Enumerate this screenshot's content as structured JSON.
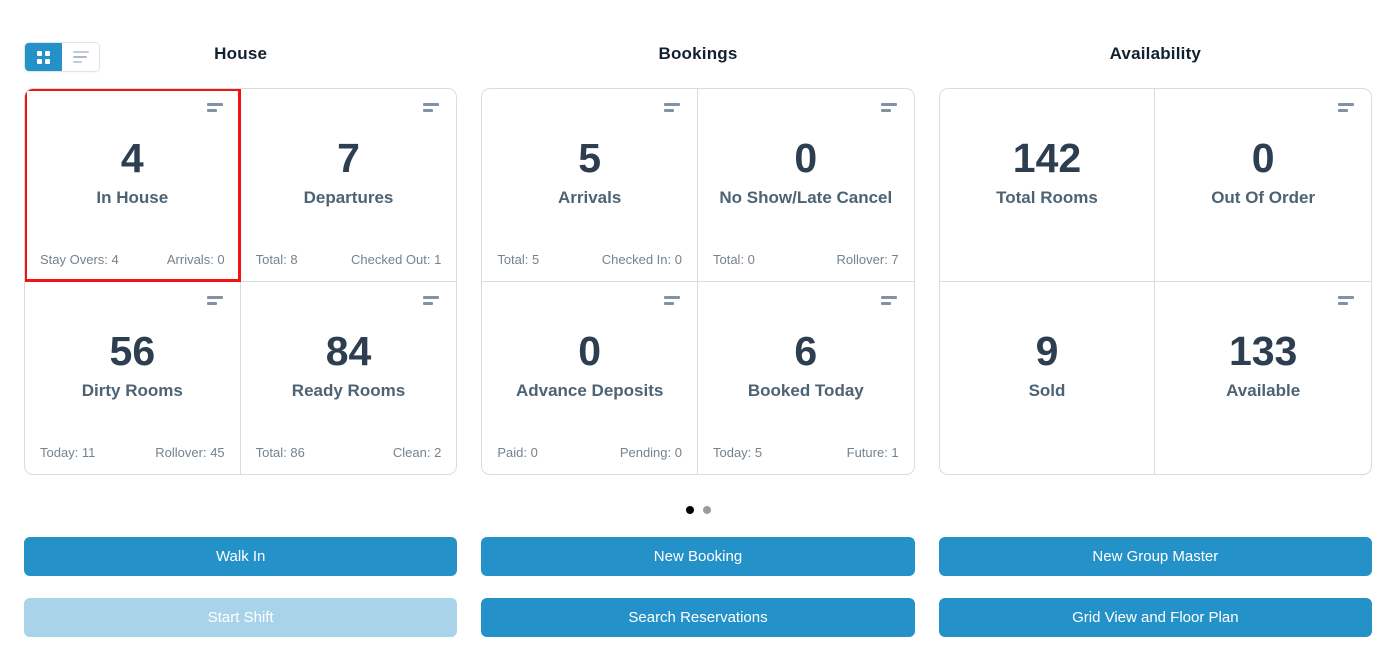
{
  "colors": {
    "accent_blue": "#2492c8",
    "disabled_blue": "#a9d3e9",
    "highlight_red": "#f11212",
    "card_border": "#d8dde2",
    "number_text": "#2d3e50",
    "label_text": "#4d6374",
    "stat_text": "#75828f"
  },
  "view_toggle": {
    "grid_view": "grid view (active)",
    "list_view": "list view"
  },
  "pagination": {
    "dot_count": 2,
    "active_index": 0
  },
  "sections": [
    {
      "title": "House",
      "cards": [
        {
          "value": "4",
          "label": "In House",
          "stat_left": "Stay Overs: 4",
          "stat_right": "Arrivals: 0",
          "highlighted": true,
          "has_menu_icon": true
        },
        {
          "value": "7",
          "label": "Departures",
          "stat_left": "Total: 8",
          "stat_right": "Checked Out: 1",
          "highlighted": false,
          "has_menu_icon": true
        },
        {
          "value": "56",
          "label": "Dirty Rooms",
          "stat_left": "Today: 11",
          "stat_right": "Rollover: 45",
          "highlighted": false,
          "has_menu_icon": true
        },
        {
          "value": "84",
          "label": "Ready Rooms",
          "stat_left": "Total: 86",
          "stat_right": "Clean: 2",
          "highlighted": false,
          "has_menu_icon": true
        }
      ],
      "primary_button": {
        "label": "Walk In",
        "disabled": false
      },
      "secondary_button": {
        "label": "Start Shift",
        "disabled": true
      }
    },
    {
      "title": "Bookings",
      "cards": [
        {
          "value": "5",
          "label": "Arrivals",
          "stat_left": "Total: 5",
          "stat_right": "Checked In: 0",
          "highlighted": false,
          "has_menu_icon": true
        },
        {
          "value": "0",
          "label": "No Show/Late Cancel",
          "stat_left": "Total: 0",
          "stat_right": "Rollover: 7",
          "highlighted": false,
          "has_menu_icon": true
        },
        {
          "value": "0",
          "label": "Advance Deposits",
          "stat_left": "Paid: 0",
          "stat_right": "Pending: 0",
          "highlighted": false,
          "has_menu_icon": true
        },
        {
          "value": "6",
          "label": "Booked Today",
          "stat_left": "Today: 5",
          "stat_right": "Future: 1",
          "highlighted": false,
          "has_menu_icon": true
        }
      ],
      "primary_button": {
        "label": "New Booking",
        "disabled": false
      },
      "secondary_button": {
        "label": "Search Reservations",
        "disabled": false
      }
    },
    {
      "title": "Availability",
      "cards": [
        {
          "value": "142",
          "label": "Total Rooms",
          "stat_left": "",
          "stat_right": "",
          "highlighted": false,
          "has_menu_icon": false
        },
        {
          "value": "0",
          "label": "Out Of Order",
          "stat_left": "",
          "stat_right": "",
          "highlighted": false,
          "has_menu_icon": true
        },
        {
          "value": "9",
          "label": "Sold",
          "stat_left": "",
          "stat_right": "",
          "highlighted": false,
          "has_menu_icon": false
        },
        {
          "value": "133",
          "label": "Available",
          "stat_left": "",
          "stat_right": "",
          "highlighted": false,
          "has_menu_icon": true
        }
      ],
      "primary_button": {
        "label": "New Group Master",
        "disabled": false
      },
      "secondary_button": {
        "label": "Grid View and Floor Plan",
        "disabled": false
      }
    }
  ]
}
